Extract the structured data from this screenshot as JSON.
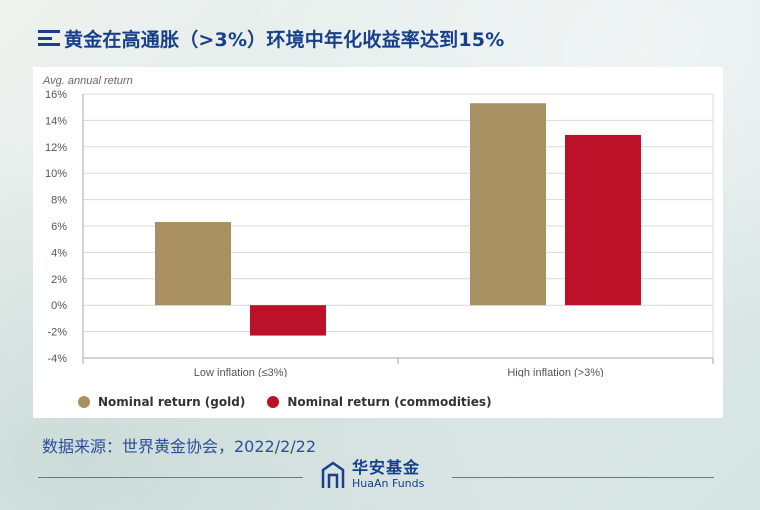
{
  "header": {
    "title": "黄金在高通胀（>3%）环境中年化收益率达到15%"
  },
  "chart_data": {
    "type": "bar",
    "ylabel": "Avg. annual return",
    "categories": [
      "Low inflation (≤3%)",
      "High inflation (>3%)"
    ],
    "series": [
      {
        "name": "Nominal return (gold)",
        "values": [
          6.3,
          15.3
        ],
        "color": "#a99062"
      },
      {
        "name": "Nominal return (commodities)",
        "values": [
          -2.3,
          12.9
        ],
        "color": "#bb1229"
      }
    ],
    "ylim": [
      -4,
      16
    ],
    "yticks": [
      16,
      14,
      12,
      10,
      8,
      6,
      4,
      2,
      0,
      -2,
      -4
    ],
    "ytick_labels": [
      "16%",
      "14%",
      "12%",
      "10%",
      "8%",
      "6%",
      "4%",
      "2%",
      "0%",
      "-2%",
      "-4%"
    ],
    "grid": true,
    "legend_position": "bottom-left"
  },
  "legend": {
    "items": [
      {
        "label": "Nominal return (gold)",
        "color": "#a99062"
      },
      {
        "label": "Nominal return (commodities)",
        "color": "#bb1229"
      }
    ]
  },
  "source": {
    "text": "数据来源：世界黄金协会，2022/2/22"
  },
  "brand": {
    "name_cn": "华安基金",
    "name_en": "HuaAn Funds"
  }
}
